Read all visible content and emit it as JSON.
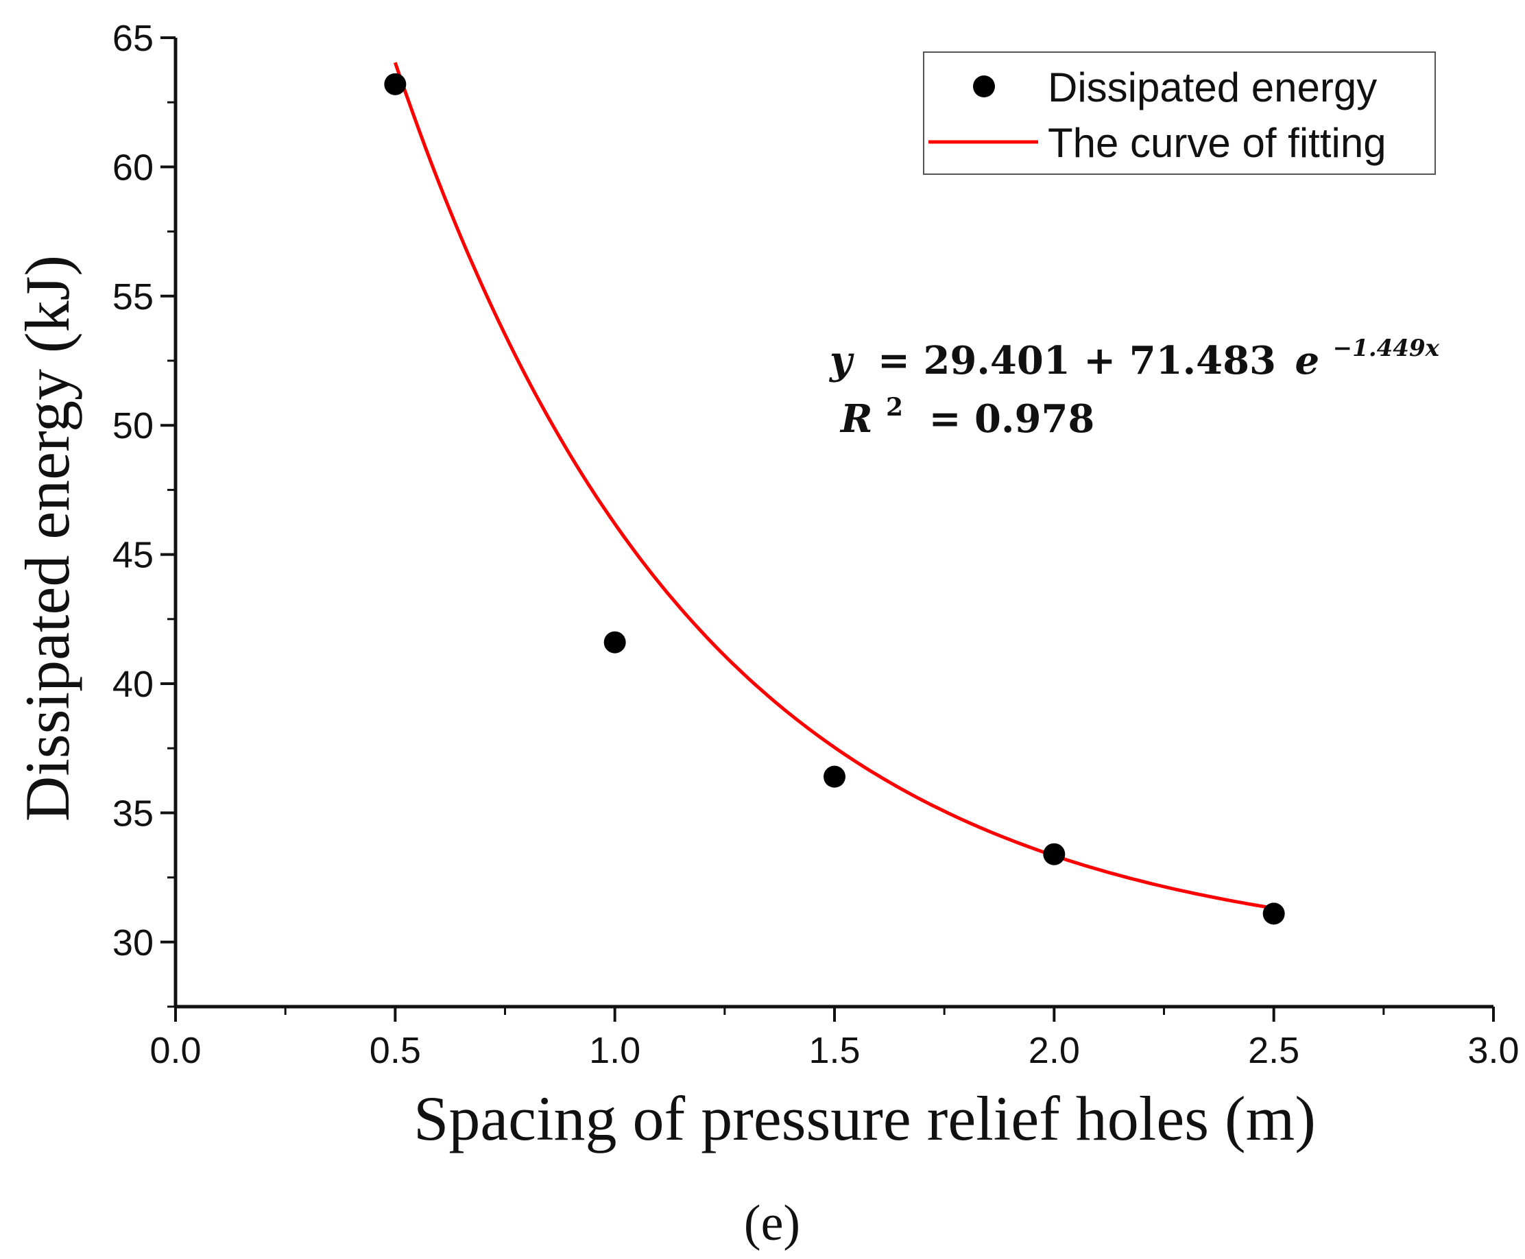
{
  "chart_data": {
    "type": "scatter",
    "title": "",
    "xlabel": "Spacing of pressure relief holes (m)",
    "ylabel": "Dissipated energy (kJ)",
    "xlim": [
      0.0,
      3.0
    ],
    "ylim": [
      27.5,
      65
    ],
    "x_ticks": [
      "0.0",
      "0.5",
      "1.0",
      "1.5",
      "2.0",
      "2.5",
      "3.0"
    ],
    "y_ticks": [
      "30",
      "35",
      "40",
      "45",
      "50",
      "55",
      "60",
      "65"
    ],
    "series": [
      {
        "name": "Dissipated energy",
        "kind": "scatter",
        "color": "#000000",
        "x": [
          0.5,
          1.0,
          1.5,
          2.0,
          2.5
        ],
        "y": [
          63.2,
          41.6,
          36.4,
          33.4,
          31.1
        ]
      },
      {
        "name": "The curve of fitting",
        "kind": "line",
        "color": "#ff0000",
        "x": [
          0.5,
          1.0,
          1.5,
          2.0,
          2.5
        ],
        "y": [
          63.1,
          45.9,
          37.5,
          33.4,
          31.3
        ]
      }
    ],
    "fit": {
      "a": 29.401,
      "b": 71.483,
      "c": -1.449
    },
    "legend": "top-right",
    "annotation": {
      "line1_lhs": "y",
      "line1_rhs": "= 29.401 + 71.483",
      "line1_base": "e",
      "line1_exp": "−1.449x",
      "line2_lhs": "R",
      "line2_sup": "2",
      "line2_rhs": "= 0.978"
    },
    "panel_label": "(e)"
  }
}
